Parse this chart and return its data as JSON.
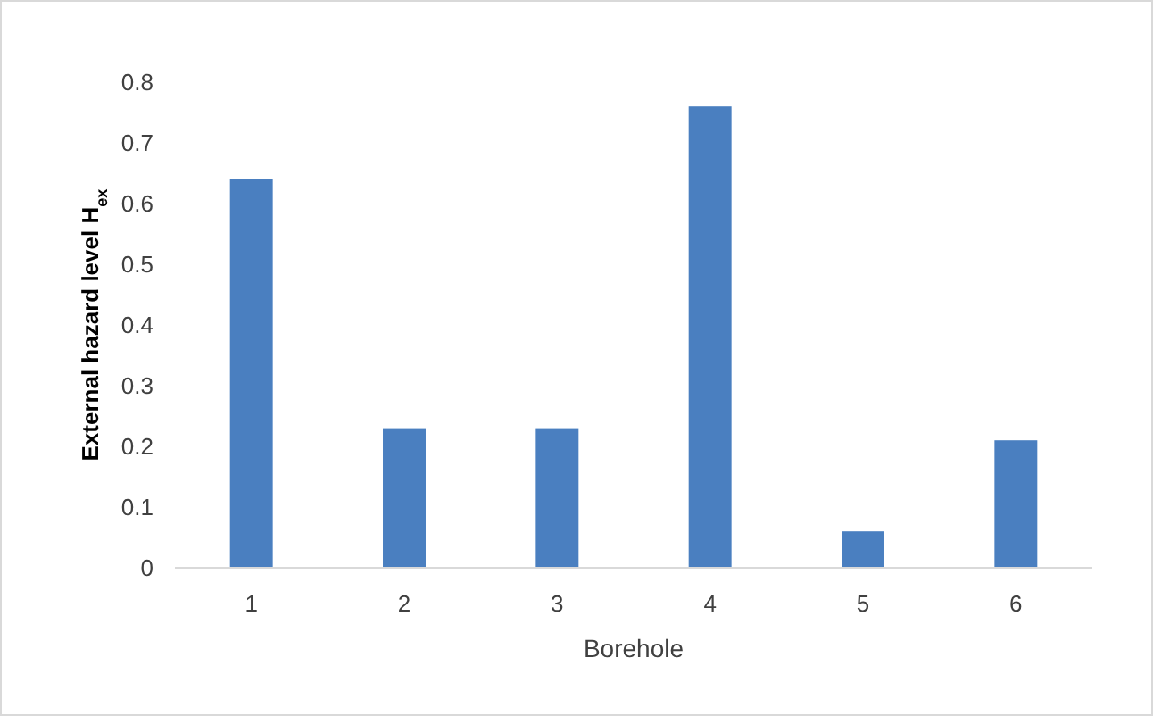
{
  "chart_data": {
    "type": "bar",
    "xlabel": "Borehole",
    "ylabel": "External hazard level H$_{ex}$",
    "categories": [
      "1",
      "2",
      "3",
      "4",
      "5",
      "6"
    ],
    "values": [
      0.64,
      0.23,
      0.23,
      0.76,
      0.06,
      0.21
    ],
    "color": "#4a7fc0",
    "ylim": [
      0,
      0.8
    ],
    "yticks": [
      0,
      0.1,
      0.2,
      0.3,
      0.4,
      0.5,
      0.6,
      0.7,
      0.8
    ],
    "grid": false
  }
}
